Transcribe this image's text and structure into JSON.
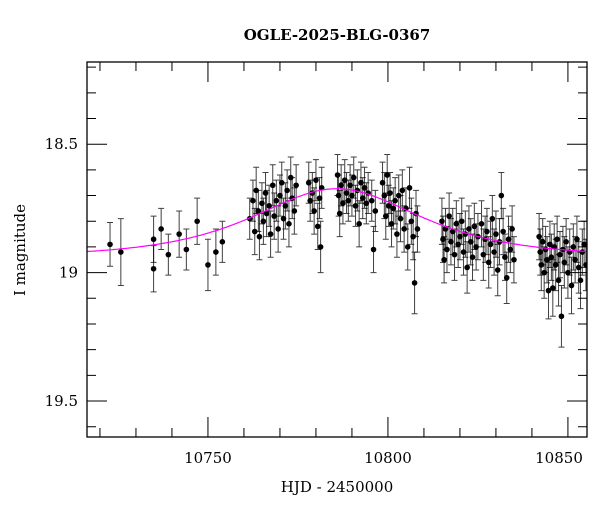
{
  "chart_data": {
    "type": "scatter",
    "title": "OGLE-2025-BLG-0367",
    "xlabel": "HJD - 2450000",
    "ylabel": "I magnitude",
    "xlim": [
      10716.4,
      10855.3
    ],
    "ylim": [
      19.64,
      18.18
    ],
    "y_inverted": true,
    "xticks": [
      10750,
      10800,
      10850
    ],
    "xtick_labels": [
      "10750",
      "10800",
      "10850"
    ],
    "x_minor_step": 10,
    "yticks": [
      18.5,
      19,
      19.5
    ],
    "ytick_labels": [
      "18.5",
      "19",
      "19.5"
    ],
    "y_minor_step": 0.1,
    "grid": false,
    "colors": {
      "points": "#000000",
      "errorbars": "#000000",
      "model": "#ff00ff"
    },
    "model": {
      "name_shown": false,
      "t0": 10785.8,
      "u0": 1.1,
      "tE": 26.6,
      "baseline_mag": 18.94
    },
    "points": [
      [
        10722.8,
        18.89,
        0.085
      ],
      [
        10725.8,
        18.92,
        0.13
      ],
      [
        10734.9,
        18.985,
        0.09
      ],
      [
        10734.9,
        18.87,
        0.09
      ],
      [
        10737.0,
        18.83,
        0.08
      ],
      [
        10739.0,
        18.93,
        0.08
      ],
      [
        10742.0,
        18.85,
        0.09
      ],
      [
        10744.0,
        18.91,
        0.08
      ],
      [
        10747.0,
        18.8,
        0.09
      ],
      [
        10750.0,
        18.97,
        0.1
      ],
      [
        10752.2,
        18.92,
        0.09
      ],
      [
        10754.0,
        18.88,
        0.08
      ],
      [
        10761.6,
        18.79,
        0.08
      ],
      [
        10762.5,
        18.72,
        0.08
      ],
      [
        10763.0,
        18.84,
        0.09
      ],
      [
        10763.4,
        18.68,
        0.09
      ],
      [
        10764.0,
        18.76,
        0.08
      ],
      [
        10764.3,
        18.86,
        0.09
      ],
      [
        10765.0,
        18.73,
        0.08
      ],
      [
        10765.4,
        18.8,
        0.09
      ],
      [
        10766.0,
        18.69,
        0.08
      ],
      [
        10766.3,
        18.77,
        0.09
      ],
      [
        10767.0,
        18.74,
        0.08
      ],
      [
        10767.4,
        18.85,
        0.09
      ],
      [
        10768.0,
        18.66,
        0.08
      ],
      [
        10768.4,
        18.78,
        0.09
      ],
      [
        10769.0,
        18.72,
        0.08
      ],
      [
        10769.5,
        18.83,
        0.09
      ],
      [
        10770.0,
        18.7,
        0.08
      ],
      [
        10770.5,
        18.65,
        0.08
      ],
      [
        10771.0,
        18.79,
        0.08
      ],
      [
        10771.5,
        18.74,
        0.09
      ],
      [
        10772.0,
        18.68,
        0.08
      ],
      [
        10772.5,
        18.81,
        0.09
      ],
      [
        10773.0,
        18.63,
        0.08
      ],
      [
        10773.4,
        18.71,
        0.08
      ],
      [
        10774.0,
        18.76,
        0.09
      ],
      [
        10774.5,
        18.66,
        0.08
      ],
      [
        10778.0,
        18.65,
        0.08
      ],
      [
        10778.4,
        18.72,
        0.08
      ],
      [
        10779.0,
        18.69,
        0.08
      ],
      [
        10779.5,
        18.76,
        0.09
      ],
      [
        10780.0,
        18.64,
        0.08
      ],
      [
        10780.5,
        18.82,
        0.09
      ],
      [
        10781.0,
        18.71,
        0.08
      ],
      [
        10781.3,
        18.9,
        0.1
      ],
      [
        10781.6,
        18.67,
        0.08
      ],
      [
        10786.0,
        18.62,
        0.08
      ],
      [
        10786.3,
        18.7,
        0.08
      ],
      [
        10786.6,
        18.77,
        0.09
      ],
      [
        10787.0,
        18.66,
        0.08
      ],
      [
        10787.5,
        18.73,
        0.08
      ],
      [
        10788.0,
        18.64,
        0.08
      ],
      [
        10788.5,
        18.69,
        0.08
      ],
      [
        10789.0,
        18.72,
        0.08
      ],
      [
        10789.5,
        18.66,
        0.08
      ],
      [
        10790.0,
        18.7,
        0.08
      ],
      [
        10790.5,
        18.63,
        0.08
      ],
      [
        10791.0,
        18.74,
        0.08
      ],
      [
        10791.5,
        18.68,
        0.08
      ],
      [
        10792.0,
        18.81,
        0.09
      ],
      [
        10792.5,
        18.65,
        0.08
      ],
      [
        10793.0,
        18.71,
        0.08
      ],
      [
        10793.5,
        18.67,
        0.08
      ],
      [
        10794.0,
        18.73,
        0.08
      ],
      [
        10794.5,
        18.69,
        0.08
      ],
      [
        10795.5,
        18.72,
        0.08
      ],
      [
        10796.0,
        18.91,
        0.09
      ],
      [
        10796.5,
        18.76,
        0.08
      ],
      [
        10798.5,
        18.65,
        0.08
      ],
      [
        10799.0,
        18.7,
        0.09
      ],
      [
        10799.4,
        18.78,
        0.09
      ],
      [
        10799.8,
        18.62,
        0.08
      ],
      [
        10800.2,
        18.74,
        0.08
      ],
      [
        10800.6,
        18.69,
        0.08
      ],
      [
        10801.0,
        18.81,
        0.09
      ],
      [
        10801.5,
        18.75,
        0.08
      ],
      [
        10802.0,
        18.72,
        0.09
      ],
      [
        10802.5,
        18.85,
        0.09
      ],
      [
        10803.0,
        18.7,
        0.08
      ],
      [
        10803.5,
        18.79,
        0.09
      ],
      [
        10804.0,
        18.68,
        0.08
      ],
      [
        10804.5,
        18.83,
        0.09
      ],
      [
        10805.0,
        18.75,
        0.08
      ],
      [
        10805.5,
        18.9,
        0.09
      ],
      [
        10806.0,
        18.67,
        0.08
      ],
      [
        10806.5,
        18.8,
        0.09
      ],
      [
        10807.0,
        18.86,
        0.09
      ],
      [
        10807.4,
        19.04,
        0.12
      ],
      [
        10807.8,
        18.77,
        0.09
      ],
      [
        10808.2,
        18.83,
        0.09
      ],
      [
        10815.0,
        18.8,
        0.09
      ],
      [
        10815.3,
        18.87,
        0.09
      ],
      [
        10815.6,
        18.95,
        0.09
      ],
      [
        10816.0,
        18.83,
        0.08
      ],
      [
        10816.4,
        18.91,
        0.09
      ],
      [
        10817.0,
        18.78,
        0.09
      ],
      [
        10817.5,
        18.88,
        0.09
      ],
      [
        10818.0,
        18.84,
        0.09
      ],
      [
        10818.5,
        18.93,
        0.1
      ],
      [
        10819.0,
        18.81,
        0.09
      ],
      [
        10819.5,
        18.89,
        0.09
      ],
      [
        10820.0,
        18.86,
        0.09
      ],
      [
        10820.5,
        18.8,
        0.09
      ],
      [
        10821.0,
        18.92,
        0.09
      ],
      [
        10821.5,
        18.85,
        0.09
      ],
      [
        10822.0,
        18.98,
        0.1
      ],
      [
        10822.5,
        18.83,
        0.09
      ],
      [
        10823.0,
        18.88,
        0.09
      ],
      [
        10823.5,
        18.94,
        0.09
      ],
      [
        10824.0,
        18.82,
        0.09
      ],
      [
        10824.5,
        18.9,
        0.09
      ],
      [
        10825.0,
        18.86,
        0.09
      ],
      [
        10826.0,
        18.81,
        0.09
      ],
      [
        10826.5,
        18.93,
        0.1
      ],
      [
        10827.0,
        18.87,
        0.09
      ],
      [
        10827.5,
        18.84,
        0.09
      ],
      [
        10828.0,
        18.96,
        0.1
      ],
      [
        10828.5,
        18.89,
        0.09
      ],
      [
        10829.0,
        18.79,
        0.09
      ],
      [
        10829.5,
        18.92,
        0.09
      ],
      [
        10830.0,
        18.85,
        0.09
      ],
      [
        10830.5,
        18.99,
        0.1
      ],
      [
        10831.0,
        18.88,
        0.09
      ],
      [
        10831.5,
        18.7,
        0.09
      ],
      [
        10832.0,
        18.84,
        0.09
      ],
      [
        10832.5,
        18.94,
        0.09
      ],
      [
        10833.0,
        19.02,
        0.1
      ],
      [
        10833.5,
        18.87,
        0.09
      ],
      [
        10834.0,
        18.91,
        0.09
      ],
      [
        10834.5,
        18.83,
        0.09
      ],
      [
        10835.0,
        18.95,
        0.09
      ],
      [
        10842.0,
        18.86,
        0.09
      ],
      [
        10842.3,
        18.92,
        0.09
      ],
      [
        10842.6,
        18.97,
        0.1
      ],
      [
        10843.0,
        18.88,
        0.09
      ],
      [
        10843.4,
        19.0,
        0.1
      ],
      [
        10843.8,
        18.91,
        0.09
      ],
      [
        10844.2,
        18.95,
        0.09
      ],
      [
        10844.6,
        19.07,
        0.11
      ],
      [
        10845.0,
        18.89,
        0.09
      ],
      [
        10845.4,
        18.94,
        0.09
      ],
      [
        10845.8,
        19.06,
        0.11
      ],
      [
        10846.2,
        18.9,
        0.09
      ],
      [
        10846.6,
        18.97,
        0.1
      ],
      [
        10847.0,
        18.87,
        0.09
      ],
      [
        10847.4,
        19.03,
        0.1
      ],
      [
        10847.8,
        18.93,
        0.09
      ],
      [
        10848.2,
        19.17,
        0.12
      ],
      [
        10848.6,
        18.91,
        0.09
      ],
      [
        10849.0,
        18.96,
        0.1
      ],
      [
        10849.5,
        18.88,
        0.09
      ],
      [
        10850.0,
        19.0,
        0.1
      ],
      [
        10850.5,
        18.92,
        0.09
      ],
      [
        10851.0,
        19.05,
        0.11
      ],
      [
        10851.5,
        18.9,
        0.09
      ],
      [
        10852.0,
        18.95,
        0.09
      ],
      [
        10852.5,
        18.87,
        0.09
      ],
      [
        10853.0,
        18.98,
        0.1
      ],
      [
        10853.5,
        19.03,
        0.11
      ],
      [
        10854.0,
        18.92,
        0.09
      ],
      [
        10854.5,
        18.89,
        0.09
      ],
      [
        10855.0,
        18.97,
        0.1
      ]
    ]
  }
}
